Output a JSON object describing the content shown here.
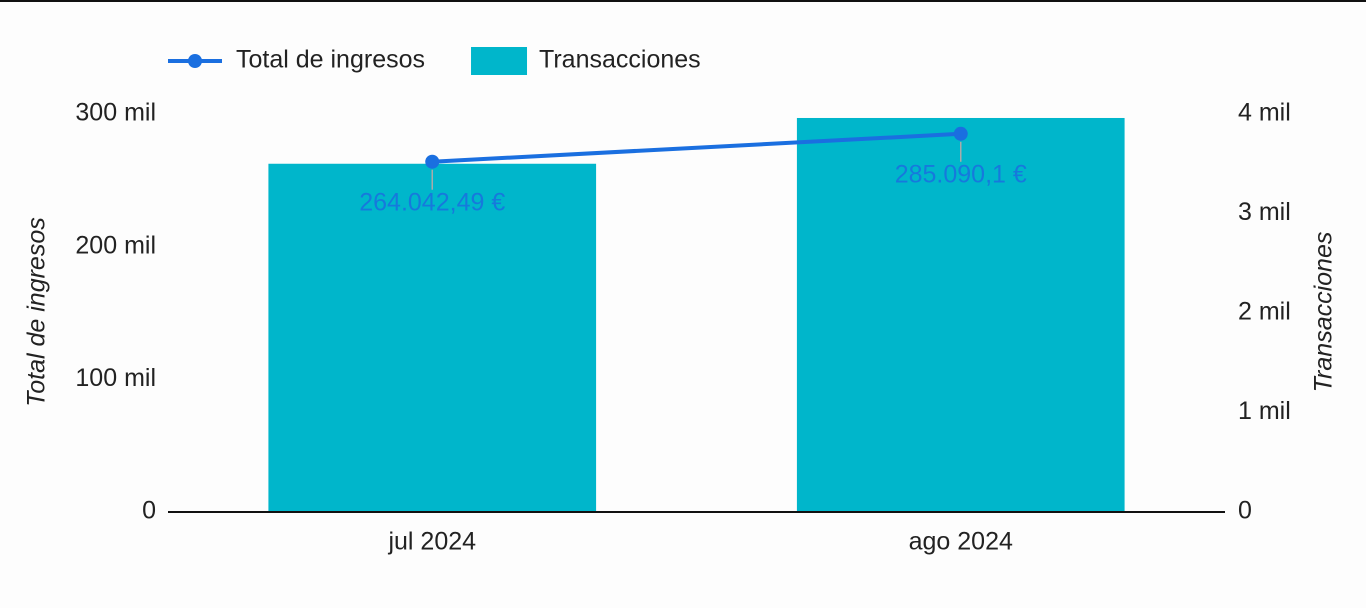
{
  "chart_data": {
    "type": "combo",
    "categories": [
      "jul 2024",
      "ago 2024"
    ],
    "series": [
      {
        "name": "Total de ingresos",
        "type": "line",
        "color": "#1a6fe0",
        "values": [
          264042.49,
          285090.1
        ],
        "value_labels": [
          "264.042,49 €",
          "285.090,1 €"
        ]
      },
      {
        "name": "Transacciones",
        "type": "bar",
        "color": "#00b6cb",
        "axis": "y2",
        "values": [
          3500,
          3960
        ]
      }
    ],
    "ylabel": "Total de ingresos",
    "y2label": "Transacciones",
    "ylim": [
      0,
      300000
    ],
    "yticks": [
      0,
      {
        "value": 100000,
        "label": "100 mil"
      },
      {
        "value": 200000,
        "label": "200 mil"
      },
      {
        "value": 300000,
        "label": "300 mil"
      }
    ],
    "y2lim": [
      0,
      4000
    ],
    "y2ticks": [
      0,
      {
        "value": 1000,
        "label": "1 mil"
      },
      {
        "value": 2000,
        "label": "2 mil"
      },
      {
        "value": 3000,
        "label": "3 mil"
      },
      {
        "value": 4000,
        "label": "4 mil"
      }
    ],
    "grid": false,
    "legend": "top-left"
  }
}
